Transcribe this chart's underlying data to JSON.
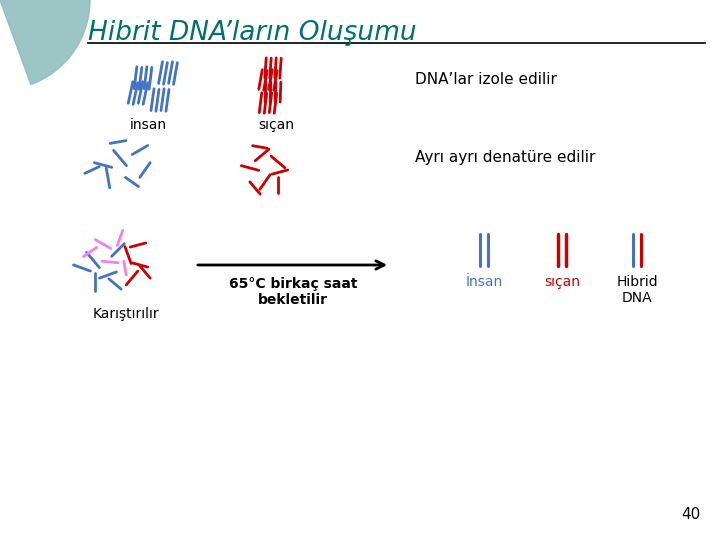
{
  "title": "Hibrit DNA’ların Oluşumu",
  "title_color": "#007070",
  "background_color": "#ffffff",
  "label_insan": "insan",
  "label_sican": "sıçan",
  "label_karistirili": "Karıştırılır",
  "label_65c": "65°C birkaç saat\nbekletilir",
  "label_dna_izole": "DNA’lar izole edilir",
  "label_ayri": "Ayrı ayrı denatüre edilir",
  "label_insan2": "İnsan",
  "label_sican2": "sıçan",
  "label_hibrid": "Hibrid\nDNA",
  "page_num": "40",
  "blue_color": "#4472C4",
  "red_color": "#CC0000",
  "pink_color": "#EE82EE",
  "text_color": "#000000",
  "teal_color": "#007070",
  "teal_bg": "#8BBCBC"
}
